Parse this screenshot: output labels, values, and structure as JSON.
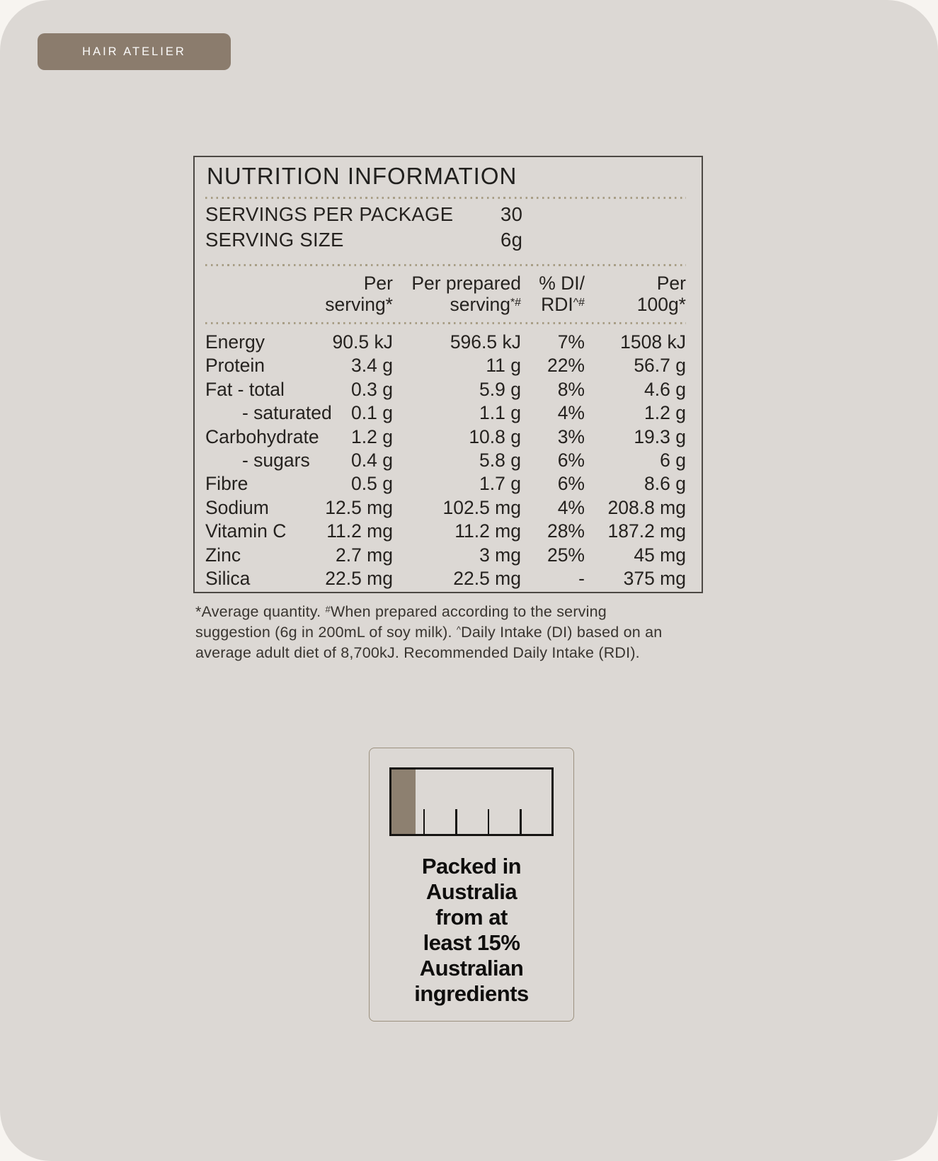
{
  "page": {
    "background": "#f7f4f0",
    "card_background": "#dcd8d4"
  },
  "brand_badge": {
    "label": "HAIR ATELIER",
    "background": "#8b7c6d",
    "text_color": "#fbfaf9"
  },
  "nutrition_panel": {
    "title": "NUTRITION INFORMATION",
    "servings_per_package": {
      "label": "SERVINGS PER PACKAGE",
      "value": "30"
    },
    "serving_size": {
      "label": "SERVING SIZE",
      "value": "6g"
    },
    "columns": [
      {
        "top": "Per",
        "bottom": "serving*",
        "bottom_sup": ""
      },
      {
        "top": "Per prepared",
        "bottom": "serving",
        "bottom_sup": "*#"
      },
      {
        "top": "% DI/",
        "bottom": "RDI",
        "bottom_sup": "^#"
      },
      {
        "top": "Per",
        "bottom": "100g*",
        "bottom_sup": ""
      }
    ],
    "rows": [
      {
        "label": "Energy",
        "per_serving": "90.5 kJ",
        "per_prepared": "596.5 kJ",
        "di": "7%",
        "per_100g": "1508 kJ"
      },
      {
        "label": "Protein",
        "per_serving": "3.4 g",
        "per_prepared": "11 g",
        "di": "22%",
        "per_100g": "56.7 g"
      },
      {
        "label": "Fat - total",
        "per_serving": "0.3 g",
        "per_prepared": "5.9 g",
        "di": "8%",
        "per_100g": "4.6 g"
      },
      {
        "label": "- saturated",
        "per_serving": "0.1 g",
        "per_prepared": "1.1 g",
        "di": "4%",
        "per_100g": "1.2 g"
      },
      {
        "label": "Carbohydrate",
        "per_serving": "1.2 g",
        "per_prepared": "10.8 g",
        "di": "3%",
        "per_100g": "19.3 g"
      },
      {
        "label": "- sugars",
        "per_serving": "0.4 g",
        "per_prepared": "5.8 g",
        "di": "6%",
        "per_100g": "6 g"
      },
      {
        "label": "Fibre",
        "per_serving": "0.5 g",
        "per_prepared": "1.7 g",
        "di": "6%",
        "per_100g": "8.6 g"
      },
      {
        "label": "Sodium",
        "per_serving": "12.5 mg",
        "per_prepared": "102.5 mg",
        "di": "4%",
        "per_100g": "208.8 mg"
      },
      {
        "label": "Vitamin C",
        "per_serving": "11.2 mg",
        "per_prepared": "11.2 mg",
        "di": "28%",
        "per_100g": "187.2 mg"
      },
      {
        "label": "Zinc",
        "per_serving": "2.7 mg",
        "per_prepared": "3 mg",
        "di": "25%",
        "per_100g": "45 mg"
      },
      {
        "label": "Silica",
        "per_serving": "22.5 mg",
        "per_prepared": "22.5 mg",
        "di": "-",
        "per_100g": "375 mg"
      }
    ]
  },
  "footnote": {
    "part1": "*Average quantity. ",
    "sup1": "#",
    "part2": "When prepared according to the serving\nsuggestion (6g in 200mL of soy milk). ",
    "sup2": "^",
    "part3": "Daily Intake (DI) based  on an\naverage adult diet of 8,700kJ. Recommended Daily Intake (RDI)."
  },
  "origin_logo": {
    "text": "Packed in\nAustralia\nfrom at\nleast 15%\nAustralian\ningredients",
    "australian_percent": 15,
    "bar_color": "#8d8070"
  }
}
